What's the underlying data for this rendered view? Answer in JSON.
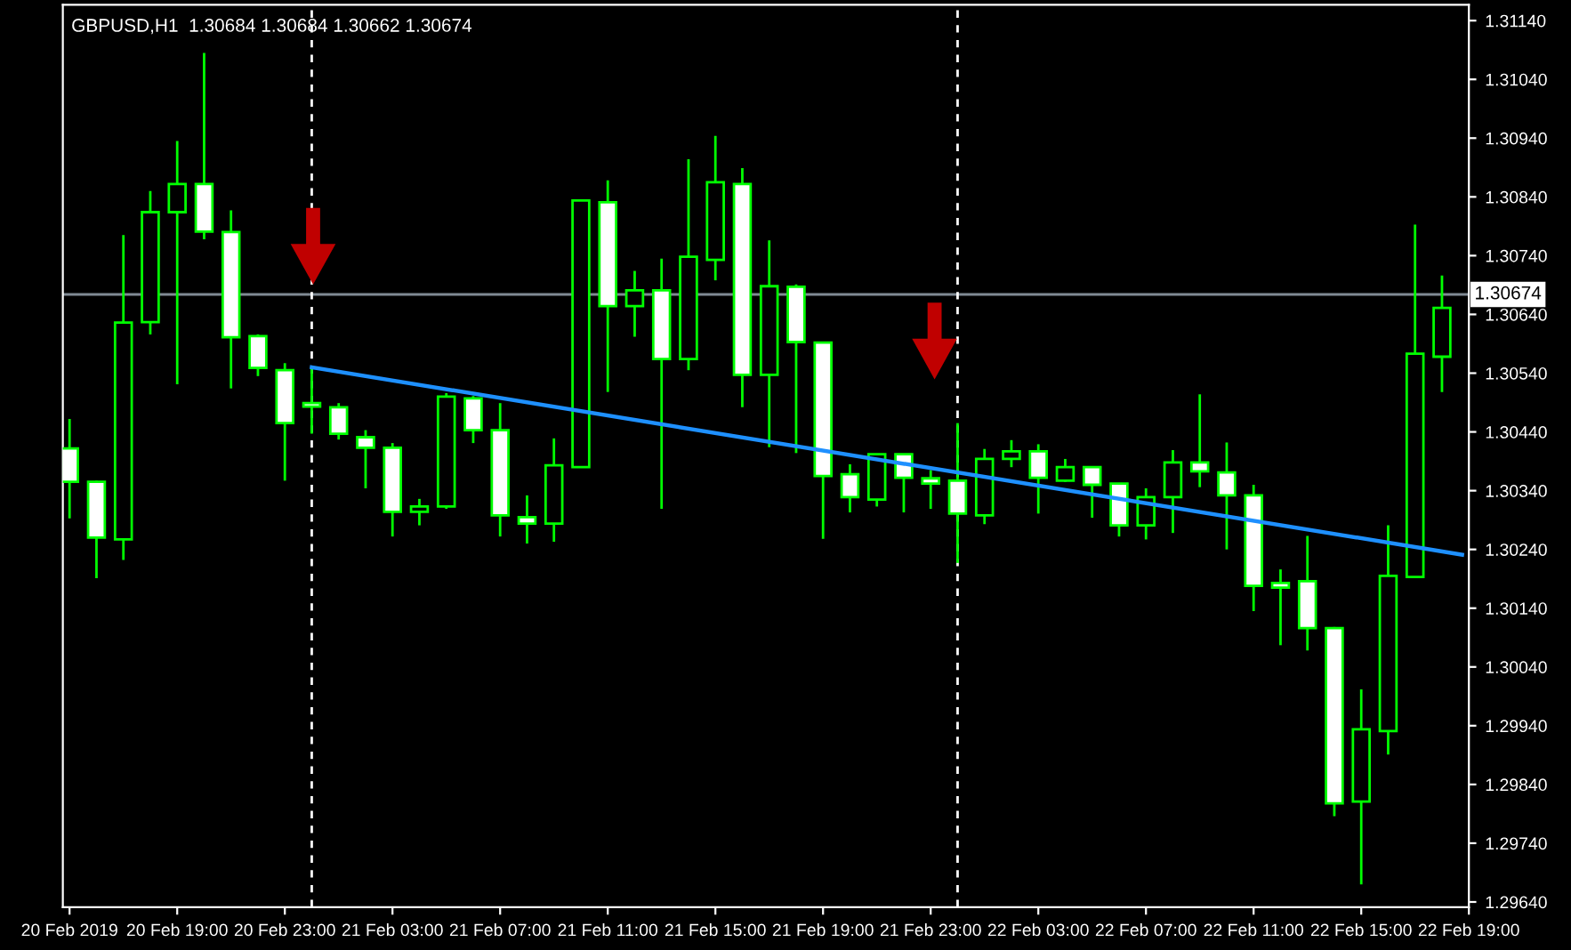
{
  "chart_data": {
    "type": "candlestick",
    "title": "GBPUSD,H1  1.30684 1.30684 1.30662 1.30674",
    "x": [
      "2019-02-20T15:00",
      "2019-02-20T16:00",
      "2019-02-20T17:00",
      "2019-02-20T18:00",
      "2019-02-20T19:00",
      "2019-02-20T20:00",
      "2019-02-20T21:00",
      "2019-02-20T22:00",
      "2019-02-20T23:00",
      "2019-02-21T00:00",
      "2019-02-21T01:00",
      "2019-02-21T02:00",
      "2019-02-21T03:00",
      "2019-02-21T04:00",
      "2019-02-21T05:00",
      "2019-02-21T06:00",
      "2019-02-21T07:00",
      "2019-02-21T08:00",
      "2019-02-21T09:00",
      "2019-02-21T10:00",
      "2019-02-21T11:00",
      "2019-02-21T12:00",
      "2019-02-21T13:00",
      "2019-02-21T14:00",
      "2019-02-21T15:00",
      "2019-02-21T16:00",
      "2019-02-21T17:00",
      "2019-02-21T18:00",
      "2019-02-21T19:00",
      "2019-02-21T20:00",
      "2019-02-21T21:00",
      "2019-02-21T22:00",
      "2019-02-21T23:00",
      "2019-02-22T00:00",
      "2019-02-22T01:00",
      "2019-02-22T02:00",
      "2019-02-22T03:00",
      "2019-02-22T04:00",
      "2019-02-22T05:00",
      "2019-02-22T06:00",
      "2019-02-22T07:00",
      "2019-02-22T08:00",
      "2019-02-22T09:00",
      "2019-02-22T10:00",
      "2019-02-22T11:00",
      "2019-02-22T12:00",
      "2019-02-22T13:00",
      "2019-02-22T14:00",
      "2019-02-22T15:00",
      "2019-02-22T16:00",
      "2019-02-22T17:00",
      "2019-02-22T18:00"
    ],
    "ohlc": [
      [
        1.30412,
        1.30462,
        1.30293,
        1.30355
      ],
      [
        1.30355,
        1.30357,
        1.30191,
        1.3026
      ],
      [
        1.30257,
        1.30775,
        1.30222,
        1.30626
      ],
      [
        1.30627,
        1.3085,
        1.30606,
        1.30814
      ],
      [
        1.30814,
        1.30935,
        1.30521,
        1.30862
      ],
      [
        1.30862,
        1.31085,
        1.30768,
        1.30781
      ],
      [
        1.3078,
        1.30817,
        1.30514,
        1.30601
      ],
      [
        1.30603,
        1.30606,
        1.30535,
        1.30549
      ],
      [
        1.30545,
        1.30557,
        1.30357,
        1.30455
      ],
      [
        1.30489,
        1.3055,
        1.30437,
        1.30483
      ],
      [
        1.30482,
        1.30489,
        1.30427,
        1.30437
      ],
      [
        1.30431,
        1.30443,
        1.30344,
        1.30413
      ],
      [
        1.30413,
        1.30421,
        1.30262,
        1.30304
      ],
      [
        1.30304,
        1.30326,
        1.30281,
        1.30313
      ],
      [
        1.30313,
        1.30506,
        1.30309,
        1.305
      ],
      [
        1.30497,
        1.30501,
        1.30421,
        1.30443
      ],
      [
        1.30443,
        1.30489,
        1.30262,
        1.30298
      ],
      [
        1.30295,
        1.30332,
        1.3025,
        1.30284
      ],
      [
        1.30284,
        1.30429,
        1.30253,
        1.30383
      ],
      [
        1.3038,
        1.30834,
        1.3038,
        1.30834
      ],
      [
        1.30831,
        1.30868,
        1.30508,
        1.30654
      ],
      [
        1.30654,
        1.30714,
        1.30602,
        1.30681
      ],
      [
        1.30681,
        1.30735,
        1.30309,
        1.30564
      ],
      [
        1.30564,
        1.30904,
        1.30545,
        1.30738
      ],
      [
        1.30733,
        1.30944,
        1.30698,
        1.30865
      ],
      [
        1.30862,
        1.30889,
        1.30482,
        1.30537
      ],
      [
        1.30537,
        1.30766,
        1.30414,
        1.30688
      ],
      [
        1.30687,
        1.30691,
        1.30404,
        1.30593
      ],
      [
        1.30592,
        1.30592,
        1.30258,
        1.30365
      ],
      [
        1.30368,
        1.30385,
        1.30303,
        1.30329
      ],
      [
        1.30325,
        1.30402,
        1.30313,
        1.30402
      ],
      [
        1.30402,
        1.30402,
        1.30303,
        1.30362
      ],
      [
        1.30361,
        1.30375,
        1.30309,
        1.30352
      ],
      [
        1.30357,
        1.30455,
        1.30217,
        1.30301
      ],
      [
        1.30298,
        1.30411,
        1.30283,
        1.30394
      ],
      [
        1.30394,
        1.30426,
        1.3038,
        1.30407
      ],
      [
        1.30407,
        1.30419,
        1.30301,
        1.30362
      ],
      [
        1.30357,
        1.30394,
        1.30355,
        1.3038
      ],
      [
        1.3038,
        1.3038,
        1.30294,
        1.3035
      ],
      [
        1.30352,
        1.30352,
        1.30262,
        1.30281
      ],
      [
        1.30281,
        1.30344,
        1.30257,
        1.30329
      ],
      [
        1.30329,
        1.30409,
        1.30268,
        1.30388
      ],
      [
        1.30388,
        1.30504,
        1.30346,
        1.30373
      ],
      [
        1.30371,
        1.30422,
        1.3024,
        1.30332
      ],
      [
        1.30332,
        1.3035,
        1.30135,
        1.30178
      ],
      [
        1.30183,
        1.30206,
        1.30077,
        1.30175
      ],
      [
        1.30186,
        1.30263,
        1.30068,
        1.30106
      ],
      [
        1.30106,
        1.30108,
        1.29786,
        1.29808
      ],
      [
        1.29811,
        1.30002,
        1.2967,
        1.29934
      ],
      [
        1.29931,
        1.30281,
        1.29891,
        1.30195
      ],
      [
        1.30193,
        1.30793,
        1.30193,
        1.30573
      ],
      [
        1.30568,
        1.30706,
        1.30508,
        1.30651
      ]
    ],
    "color": "#00ff00",
    "series": [
      {
        "type": "line",
        "color": "#1e90ff",
        "x": [
          "2019-02-21T00:00",
          "2019-02-22T18:45"
        ],
        "values": [
          1.3055,
          1.30231
        ]
      }
    ],
    "ref_lines": [
      {
        "axis": "y",
        "value": 1.30674,
        "label": "1.30674",
        "color": "#808a94",
        "line_style": "solid"
      },
      {
        "axis": "x",
        "value": "2019-02-21T00:00",
        "color": "#ffffff",
        "line_style": "dashed"
      },
      {
        "axis": "x",
        "value": "2019-02-22T00:00",
        "color": "#ffffff",
        "line_style": "dashed"
      }
    ],
    "xlim": [
      "2019-02-20T14:45",
      "2019-02-22T19:00"
    ],
    "xticks": [
      {
        "value": "2019-02-20T15:00",
        "label": "20 Feb 2019"
      },
      {
        "value": "2019-02-20T19:00",
        "label": "20 Feb 19:00"
      },
      {
        "value": "2019-02-20T23:00",
        "label": "20 Feb 23:00"
      },
      {
        "value": "2019-02-21T03:00",
        "label": "21 Feb 03:00"
      },
      {
        "value": "2019-02-21T07:00",
        "label": "21 Feb 07:00"
      },
      {
        "value": "2019-02-21T11:00",
        "label": "21 Feb 11:00"
      },
      {
        "value": "2019-02-21T15:00",
        "label": "21 Feb 15:00"
      },
      {
        "value": "2019-02-21T19:00",
        "label": "21 Feb 19:00"
      },
      {
        "value": "2019-02-21T23:00",
        "label": "21 Feb 23:00"
      },
      {
        "value": "2019-02-22T03:00",
        "label": "22 Feb 03:00"
      },
      {
        "value": "2019-02-22T07:00",
        "label": "22 Feb 07:00"
      },
      {
        "value": "2019-02-22T11:00",
        "label": "22 Feb 11:00"
      },
      {
        "value": "2019-02-22T15:00",
        "label": "22 Feb 15:00"
      },
      {
        "value": "2019-02-22T19:00",
        "label": "22 Feb 19:00"
      }
    ],
    "ylim": [
      1.29631,
      1.31167
    ],
    "yticks": [
      {
        "value": 1.2964,
        "label": "1.29640"
      },
      {
        "value": 1.2974,
        "label": "1.29740"
      },
      {
        "value": 1.2984,
        "label": "1.29840"
      },
      {
        "value": 1.2994,
        "label": "1.29940"
      },
      {
        "value": 1.3004,
        "label": "1.30040"
      },
      {
        "value": 1.3014,
        "label": "1.30140"
      },
      {
        "value": 1.3024,
        "label": "1.30240"
      },
      {
        "value": 1.3034,
        "label": "1.30340"
      },
      {
        "value": 1.3044,
        "label": "1.30440"
      },
      {
        "value": 1.3054,
        "label": "1.30540"
      },
      {
        "value": 1.3064,
        "label": "1.30640"
      },
      {
        "value": 1.3074,
        "label": "1.30740"
      },
      {
        "value": 1.3084,
        "label": "1.30840"
      },
      {
        "value": 1.3094,
        "label": "1.30940"
      },
      {
        "value": 1.3104,
        "label": "1.31040"
      },
      {
        "value": 1.3114,
        "label": "1.31140"
      }
    ],
    "grid": false
  }
}
